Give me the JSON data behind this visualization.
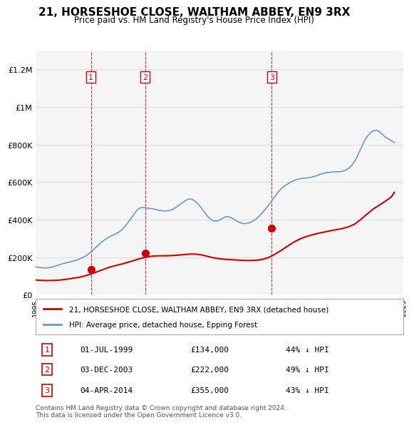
{
  "title": "21, HORSESHOE CLOSE, WALTHAM ABBEY, EN9 3RX",
  "subtitle": "Price paid vs. HM Land Registry's House Price Index (HPI)",
  "ylim": [
    0,
    1300000
  ],
  "yticks": [
    0,
    200000,
    400000,
    600000,
    800000,
    1000000,
    1200000
  ],
  "ytick_labels": [
    "£0",
    "£200K",
    "£400K",
    "£600K",
    "£800K",
    "£1M",
    "£1.2M"
  ],
  "red_line_color": "#cc0000",
  "blue_line_color": "#6699cc",
  "vline_color": "#cc0000",
  "bg_color": "#ffffff",
  "plot_bg_color": "#f5f5f5",
  "grid_color": "#dddddd",
  "legend_label_red": "21, HORSESHOE CLOSE, WALTHAM ABBEY, EN9 3RX (detached house)",
  "legend_label_blue": "HPI: Average price, detached house, Epping Forest",
  "transactions": [
    {
      "num": 1,
      "date": 1999.5,
      "price": 134000,
      "label": "01-JUL-1999",
      "price_str": "£134,000",
      "pct": "44% ↓ HPI"
    },
    {
      "num": 2,
      "date": 2003.92,
      "price": 222000,
      "label": "03-DEC-2003",
      "price_str": "£222,000",
      "pct": "49% ↓ HPI"
    },
    {
      "num": 3,
      "date": 2014.25,
      "price": 355000,
      "label": "04-APR-2014",
      "price_str": "£355,000",
      "pct": "43% ↓ HPI"
    }
  ],
  "footer": "Contains HM Land Registry data © Crown copyright and database right 2024.\nThis data is licensed under the Open Government Licence v3.0.",
  "hpi_years": [
    1995,
    1995.25,
    1995.5,
    1995.75,
    1996,
    1996.25,
    1996.5,
    1996.75,
    1997,
    1997.25,
    1997.5,
    1997.75,
    1998,
    1998.25,
    1998.5,
    1998.75,
    1999,
    1999.25,
    1999.5,
    1999.75,
    2000,
    2000.25,
    2000.5,
    2000.75,
    2001,
    2001.25,
    2001.5,
    2001.75,
    2002,
    2002.25,
    2002.5,
    2002.75,
    2003,
    2003.25,
    2003.5,
    2003.75,
    2004,
    2004.25,
    2004.5,
    2004.75,
    2005,
    2005.25,
    2005.5,
    2005.75,
    2006,
    2006.25,
    2006.5,
    2006.75,
    2007,
    2007.25,
    2007.5,
    2007.75,
    2008,
    2008.25,
    2008.5,
    2008.75,
    2009,
    2009.25,
    2009.5,
    2009.75,
    2010,
    2010.25,
    2010.5,
    2010.75,
    2011,
    2011.25,
    2011.5,
    2011.75,
    2012,
    2012.25,
    2012.5,
    2012.75,
    2013,
    2013.25,
    2013.5,
    2013.75,
    2014,
    2014.25,
    2014.5,
    2014.75,
    2015,
    2015.25,
    2015.5,
    2015.75,
    2016,
    2016.25,
    2016.5,
    2016.75,
    2017,
    2017.25,
    2017.5,
    2017.75,
    2018,
    2018.25,
    2018.5,
    2018.75,
    2019,
    2019.25,
    2019.5,
    2019.75,
    2020,
    2020.25,
    2020.5,
    2020.75,
    2021,
    2021.25,
    2021.5,
    2021.75,
    2022,
    2022.25,
    2022.5,
    2022.75,
    2023,
    2023.25,
    2023.5,
    2023.75,
    2024,
    2024.25
  ],
  "hpi_values": [
    148000,
    145000,
    143000,
    142000,
    143000,
    146000,
    150000,
    155000,
    161000,
    166000,
    170000,
    174000,
    178000,
    182000,
    188000,
    196000,
    204000,
    214000,
    228000,
    244000,
    258000,
    273000,
    287000,
    298000,
    308000,
    316000,
    323000,
    332000,
    345000,
    362000,
    383000,
    405000,
    428000,
    450000,
    462000,
    465000,
    462000,
    460000,
    458000,
    455000,
    450000,
    447000,
    446000,
    447000,
    450000,
    458000,
    468000,
    480000,
    492000,
    503000,
    510000,
    508000,
    498000,
    482000,
    462000,
    440000,
    418000,
    402000,
    393000,
    392000,
    398000,
    408000,
    415000,
    415000,
    408000,
    398000,
    388000,
    382000,
    378000,
    380000,
    385000,
    393000,
    405000,
    420000,
    438000,
    458000,
    478000,
    500000,
    523000,
    545000,
    563000,
    577000,
    588000,
    598000,
    606000,
    613000,
    617000,
    620000,
    621000,
    623000,
    626000,
    630000,
    636000,
    642000,
    647000,
    650000,
    652000,
    654000,
    655000,
    655000,
    657000,
    662000,
    672000,
    687000,
    710000,
    740000,
    776000,
    812000,
    840000,
    860000,
    872000,
    876000,
    870000,
    855000,
    840000,
    830000,
    820000,
    810000
  ],
  "price_years": [
    1995,
    1995.5,
    1996,
    1996.5,
    1997,
    1997.5,
    1998,
    1998.5,
    1999,
    1999.5,
    2000,
    2000.5,
    2001,
    2001.5,
    2002,
    2002.5,
    2003,
    2003.5,
    2004,
    2004.5,
    2005,
    2005.5,
    2006,
    2006.5,
    2007,
    2007.5,
    2008,
    2008.5,
    2009,
    2009.5,
    2010,
    2010.5,
    2011,
    2011.5,
    2012,
    2012.5,
    2013,
    2013.5,
    2014,
    2014.5,
    2015,
    2015.5,
    2016,
    2016.5,
    2017,
    2017.5,
    2018,
    2018.5,
    2019,
    2019.5,
    2020,
    2020.5,
    2021,
    2021.5,
    2022,
    2022.5,
    2023,
    2023.5,
    2024,
    2024.25
  ],
  "price_values": [
    78000,
    76000,
    75000,
    76000,
    78000,
    82000,
    87000,
    92000,
    100000,
    110000,
    122000,
    134000,
    146000,
    155000,
    163000,
    172000,
    182000,
    192000,
    200000,
    205000,
    207000,
    207000,
    208000,
    210000,
    213000,
    216000,
    216000,
    212000,
    204000,
    196000,
    191000,
    188000,
    186000,
    184000,
    182000,
    182000,
    183000,
    188000,
    198000,
    215000,
    235000,
    257000,
    278000,
    295000,
    308000,
    318000,
    326000,
    333000,
    340000,
    346000,
    352000,
    361000,
    375000,
    400000,
    428000,
    455000,
    476000,
    497000,
    520000,
    545000
  ],
  "xmin": 1995,
  "xmax": 2025
}
